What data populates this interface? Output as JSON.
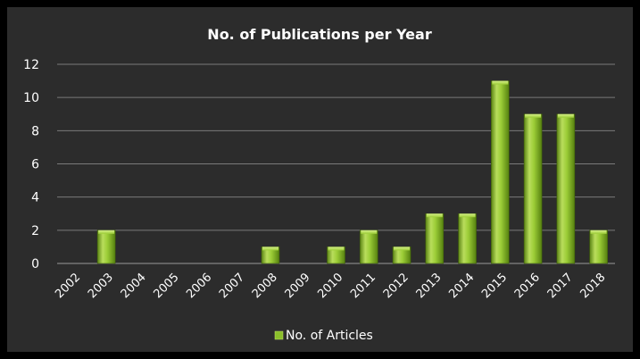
{
  "chart_data": {
    "type": "bar",
    "title": "No. of Publications per Year",
    "xlabel": "",
    "ylabel": "",
    "categories": [
      "2002",
      "2003",
      "2004",
      "2005",
      "2006",
      "2007",
      "2008",
      "2009",
      "2010",
      "2011",
      "2012",
      "2013",
      "2014",
      "2015",
      "2016",
      "2017",
      "2018"
    ],
    "series": [
      {
        "name": "No. of Articles",
        "values": [
          0,
          2,
          0,
          0,
          0,
          0,
          1,
          0,
          1,
          2,
          1,
          3,
          3,
          11,
          9,
          9,
          2
        ]
      }
    ],
    "ylim": [
      0,
      12
    ],
    "yticks": [
      "0",
      "2",
      "4",
      "6",
      "8",
      "10",
      "12"
    ],
    "grid": true,
    "legend_position": "bottom",
    "colors": {
      "plot_background": "#2c2c2c",
      "bar_fill": "#8bbf2a",
      "bar_highlight": "#c3e46a",
      "bar_shadow": "#4f7510",
      "gridline": "#7a7a7a",
      "text": "#ffffff"
    }
  }
}
